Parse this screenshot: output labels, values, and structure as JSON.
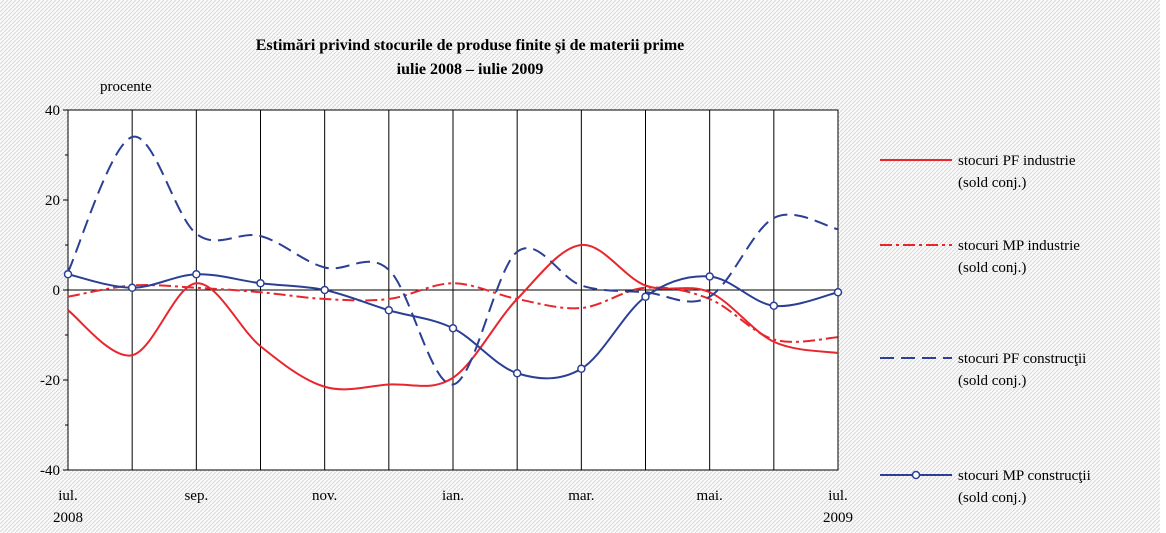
{
  "chart_data": {
    "type": "line",
    "title": "Estimări privind stocurile de produse finite şi de materii prime",
    "subtitle": "iulie 2008 – iulie 2009",
    "y_label": "procente",
    "categories": [
      "iul. 2008",
      null,
      "sep.",
      null,
      "nov.",
      null,
      "ian.",
      null,
      "mar.",
      null,
      "mai.",
      null,
      "iul. 2009"
    ],
    "ylim": [
      -40,
      40
    ],
    "yticks": [
      -40,
      -20,
      0,
      20,
      40
    ],
    "grid": "vertical",
    "smooth": true,
    "legend": "right",
    "series": [
      {
        "name": "stocuri PF industrie (sold conj.)",
        "color": "#e8262d",
        "dash": "solid",
        "markers": false,
        "values": [
          -4.5,
          -14.5,
          1.5,
          -12.5,
          -21.5,
          -21,
          -19.5,
          -2,
          10,
          1,
          -0.5,
          -11.5,
          -14
        ]
      },
      {
        "name": "stocuri MP industrie (sold conj.)",
        "color": "#e8262d",
        "dash": "dashdot",
        "markers": false,
        "values": [
          -1.5,
          1,
          0.5,
          -0.5,
          -2,
          -2,
          1.5,
          -2,
          -4,
          0.5,
          -2,
          -11,
          -10.5
        ]
      },
      {
        "name": "stocuri PF construcţii (sold conj.)",
        "color": "#2b3f94",
        "dash": "dashed",
        "markers": false,
        "values": [
          4,
          34,
          12.5,
          12,
          5,
          4.5,
          -21,
          8.5,
          1,
          -0.5,
          -1.5,
          16,
          13.5
        ]
      },
      {
        "name": "stocuri MP construcţii (sold conj.)",
        "color": "#2b3f94",
        "dash": "solid",
        "markers": true,
        "values": [
          3.5,
          0.5,
          3.5,
          1.5,
          0,
          -4.5,
          -8.5,
          -18.5,
          -17.5,
          -1.5,
          3,
          -3.5,
          -0.5
        ]
      }
    ]
  }
}
